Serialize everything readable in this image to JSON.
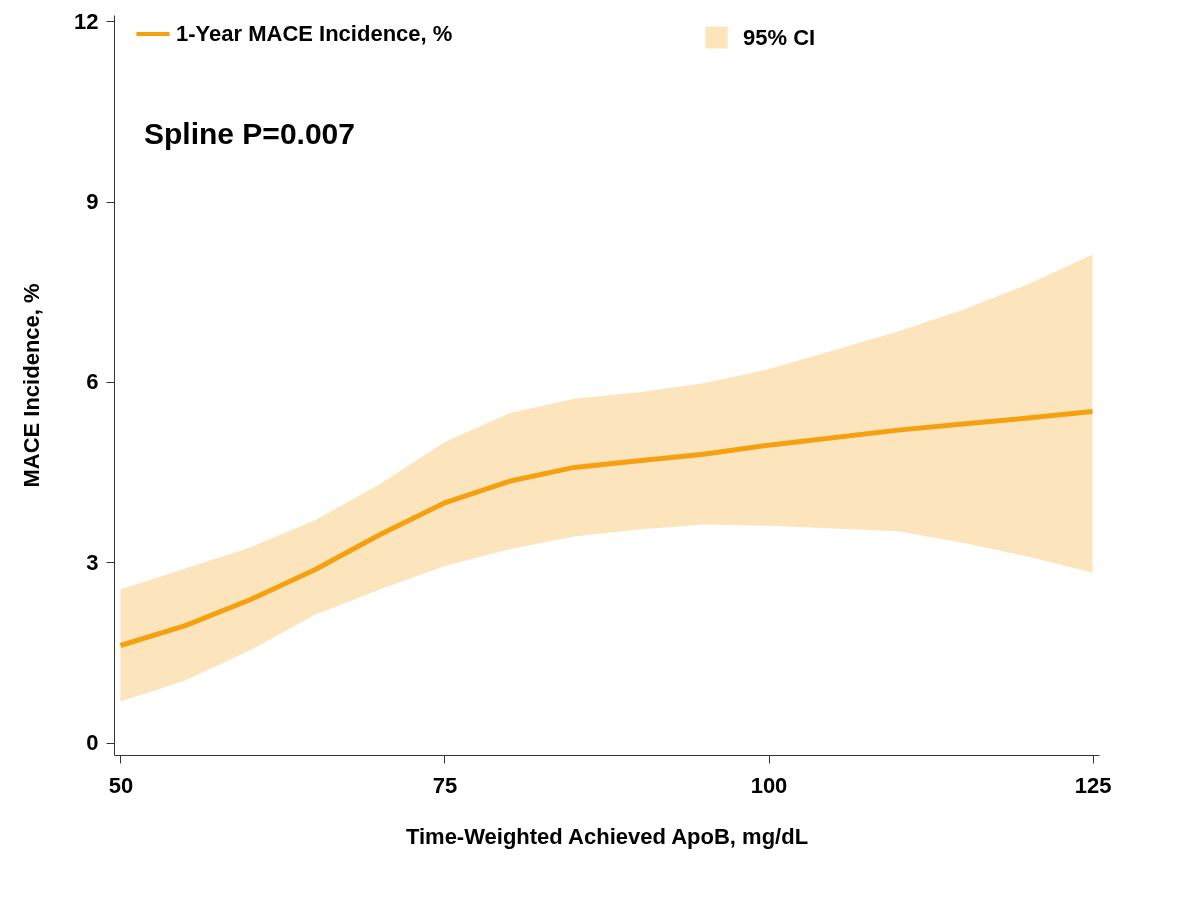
{
  "chart_data": {
    "type": "line",
    "xlabel": "Time-Weighted Achieved ApoB, mg/dL",
    "ylabel": "MACE Incidence, %",
    "xlim": [
      49.5,
      125.5
    ],
    "xticks": [
      50,
      75,
      100,
      125
    ],
    "ylim": [
      -0.2,
      12.1
    ],
    "yticks": [
      0,
      3,
      6,
      9,
      12
    ],
    "grid": false,
    "legend": "top left",
    "marker": "none",
    "line_style": "solid",
    "annotations": [
      "95% CI",
      "Spline P=0.007"
    ],
    "series": [
      {
        "name": "1-Year MACE Incidence, %",
        "color": "#f5a00f",
        "x": [
          50,
          55,
          60,
          65,
          70,
          75,
          80,
          85,
          90,
          95,
          100,
          110,
          115,
          120,
          125
        ],
        "values": [
          1.62,
          1.95,
          2.38,
          2.88,
          3.46,
          3.99,
          4.35,
          4.58,
          4.69,
          4.8,
          4.95,
          5.2,
          5.3,
          5.4,
          5.51
        ],
        "lower": [
          0.69,
          1.04,
          1.54,
          2.13,
          2.55,
          2.94,
          3.22,
          3.43,
          3.55,
          3.63,
          3.61,
          3.52,
          3.33,
          3.1,
          2.83
        ],
        "upper": [
          2.55,
          2.9,
          3.25,
          3.7,
          4.3,
          5.0,
          5.48,
          5.72,
          5.83,
          5.98,
          6.21,
          6.84,
          7.2,
          7.62,
          8.12
        ]
      }
    ]
  }
}
